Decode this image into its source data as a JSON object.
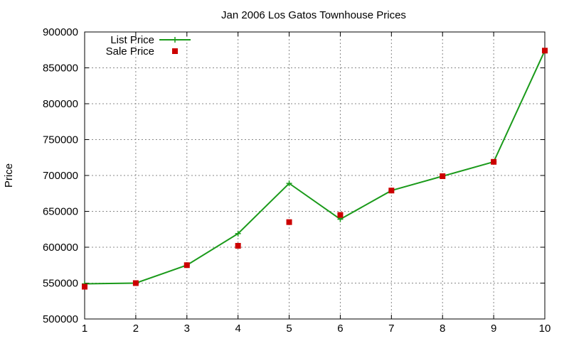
{
  "chart_data": {
    "type": "line",
    "title": "Jan 2006 Los Gatos Townhouse Prices",
    "xlabel": "",
    "ylabel": "Price",
    "xlim": [
      1,
      10
    ],
    "ylim": [
      500000,
      900000
    ],
    "x_ticks": [
      1,
      2,
      3,
      4,
      5,
      6,
      7,
      8,
      9,
      10
    ],
    "y_ticks": [
      500000,
      550000,
      600000,
      650000,
      700000,
      750000,
      800000,
      850000,
      900000
    ],
    "grid": true,
    "legend_position": "top-left",
    "series": [
      {
        "name": "List Price",
        "style": "line+plus",
        "color": "#1a9a1a",
        "x": [
          1,
          2,
          3,
          4,
          5,
          6,
          7,
          8,
          9,
          10
        ],
        "y": [
          549000,
          550000,
          575000,
          619000,
          689000,
          639000,
          679000,
          699000,
          719000,
          874000
        ]
      },
      {
        "name": "Sale Price",
        "style": "square-points",
        "color": "#cc0000",
        "x": [
          1,
          2,
          3,
          4,
          5,
          6,
          7,
          8,
          9,
          10
        ],
        "y": [
          545000,
          550000,
          575000,
          602000,
          635000,
          645000,
          679000,
          699000,
          719000,
          874000
        ]
      }
    ]
  }
}
